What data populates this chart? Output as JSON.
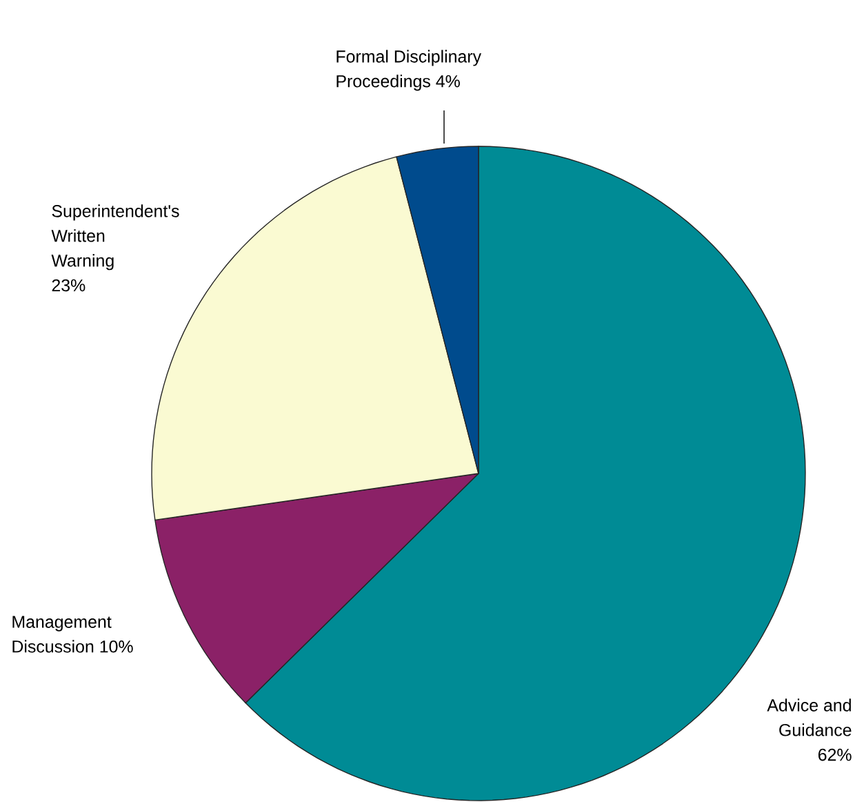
{
  "chart_data": {
    "type": "pie",
    "categories": [
      "Advice and Guidance",
      "Management Discussion",
      "Superintendent's Written Warning",
      "Formal Disciplinary Proceedings"
    ],
    "values": [
      62,
      10,
      23,
      4
    ],
    "value_labels": [
      "62%",
      "10%",
      "23%",
      "4%"
    ],
    "colors": [
      "#008b95",
      "#8b2167",
      "#fafad2",
      "#004b8d"
    ]
  }
}
